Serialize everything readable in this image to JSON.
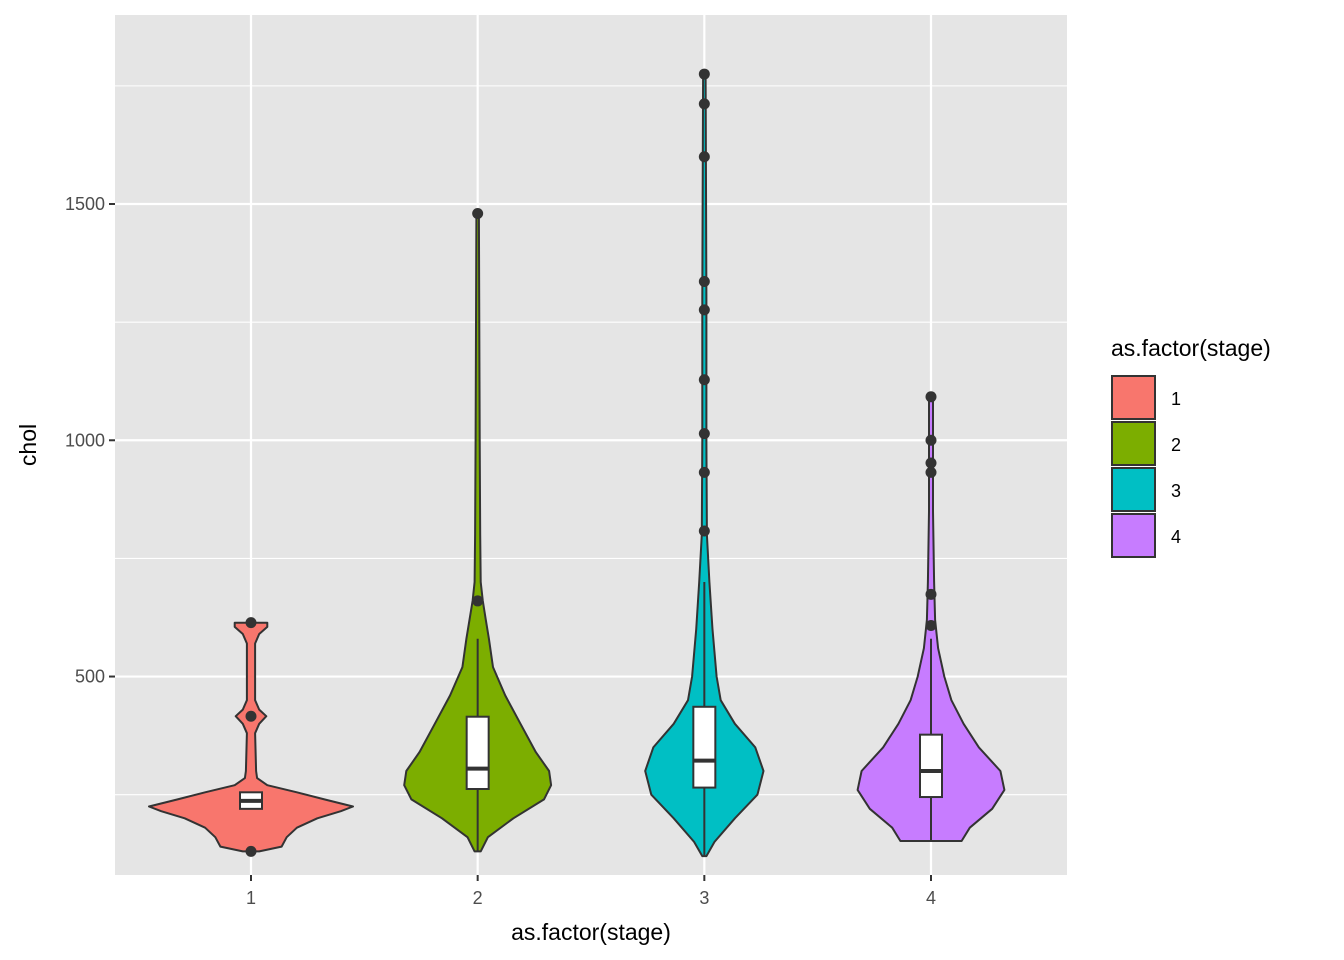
{
  "chart_data": {
    "type": "violin",
    "xlabel": "as.factor(stage)",
    "ylabel": "chol",
    "categories": [
      "1",
      "2",
      "3",
      "4"
    ],
    "ylim": [
      80,
      1900
    ],
    "y_ticks": [
      500,
      1000,
      1500
    ],
    "y_tick_labels": [
      "500",
      "1000",
      "1500"
    ],
    "grid": true,
    "legend": {
      "title": "as.factor(stage)",
      "position": "right",
      "entries": [
        "1",
        "2",
        "3",
        "4"
      ]
    },
    "colors": {
      "1": "#F8766D",
      "2": "#7CAE00",
      "3": "#00BFC4",
      "4": "#C77CFF",
      "panel": "#E5E5E5",
      "grid": "#FFFFFF",
      "outline": "#333333"
    },
    "series": [
      {
        "category": "1",
        "box": {
          "lower_whisker": 220,
          "q1": 220,
          "median": 237,
          "q3": 255,
          "upper_whisker": 255
        },
        "outliers": [
          130,
          416,
          614
        ],
        "range": [
          130,
          614
        ],
        "density": [
          [
            130,
            0.08
          ],
          [
            140,
            0.3
          ],
          [
            160,
            0.35
          ],
          [
            180,
            0.45
          ],
          [
            200,
            0.65
          ],
          [
            215,
            0.88
          ],
          [
            225,
            1.0
          ],
          [
            240,
            0.72
          ],
          [
            255,
            0.45
          ],
          [
            270,
            0.16
          ],
          [
            285,
            0.06
          ],
          [
            300,
            0.05
          ],
          [
            380,
            0.04
          ],
          [
            400,
            0.08
          ],
          [
            416,
            0.15
          ],
          [
            430,
            0.08
          ],
          [
            450,
            0.04
          ],
          [
            570,
            0.04
          ],
          [
            590,
            0.08
          ],
          [
            605,
            0.16
          ],
          [
            614,
            0.16
          ]
        ]
      },
      {
        "category": "2",
        "box": {
          "lower_whisker": 130,
          "q1": 262,
          "median": 305,
          "q3": 415,
          "upper_whisker": 580
        },
        "outliers": [
          660,
          1480
        ],
        "range": [
          130,
          1480
        ],
        "density": [
          [
            130,
            0.03
          ],
          [
            160,
            0.1
          ],
          [
            200,
            0.35
          ],
          [
            240,
            0.65
          ],
          [
            270,
            0.72
          ],
          [
            300,
            0.7
          ],
          [
            340,
            0.57
          ],
          [
            400,
            0.42
          ],
          [
            460,
            0.27
          ],
          [
            520,
            0.15
          ],
          [
            580,
            0.11
          ],
          [
            620,
            0.08
          ],
          [
            660,
            0.05
          ],
          [
            700,
            0.03
          ],
          [
            800,
            0.025
          ],
          [
            1000,
            0.02
          ],
          [
            1300,
            0.015
          ],
          [
            1480,
            0.012
          ]
        ]
      },
      {
        "category": "3",
        "box": {
          "lower_whisker": 120,
          "q1": 265,
          "median": 322,
          "q3": 436,
          "upper_whisker": 700
        },
        "outliers": [
          808,
          932,
          1014,
          1128,
          1276,
          1336,
          1600,
          1712,
          1775
        ],
        "range": [
          120,
          1775
        ],
        "density": [
          [
            120,
            0.02
          ],
          [
            150,
            0.1
          ],
          [
            200,
            0.3
          ],
          [
            250,
            0.52
          ],
          [
            300,
            0.58
          ],
          [
            350,
            0.5
          ],
          [
            400,
            0.3
          ],
          [
            450,
            0.16
          ],
          [
            500,
            0.12
          ],
          [
            600,
            0.08
          ],
          [
            700,
            0.05
          ],
          [
            800,
            0.025
          ],
          [
            1000,
            0.02
          ],
          [
            1300,
            0.02
          ],
          [
            1600,
            0.015
          ],
          [
            1775,
            0.012
          ]
        ]
      },
      {
        "category": "4",
        "box": {
          "lower_whisker": 152,
          "q1": 245,
          "median": 300,
          "q3": 377,
          "upper_whisker": 580
        },
        "outliers": [
          608,
          674,
          932,
          952,
          1000,
          1092
        ],
        "range": [
          152,
          1092
        ],
        "density": [
          [
            152,
            0.3
          ],
          [
            180,
            0.38
          ],
          [
            220,
            0.6
          ],
          [
            260,
            0.72
          ],
          [
            300,
            0.68
          ],
          [
            350,
            0.47
          ],
          [
            400,
            0.32
          ],
          [
            450,
            0.2
          ],
          [
            500,
            0.13
          ],
          [
            560,
            0.07
          ],
          [
            620,
            0.04
          ],
          [
            700,
            0.03
          ],
          [
            850,
            0.02
          ],
          [
            1000,
            0.02
          ],
          [
            1092,
            0.02
          ]
        ]
      }
    ]
  }
}
